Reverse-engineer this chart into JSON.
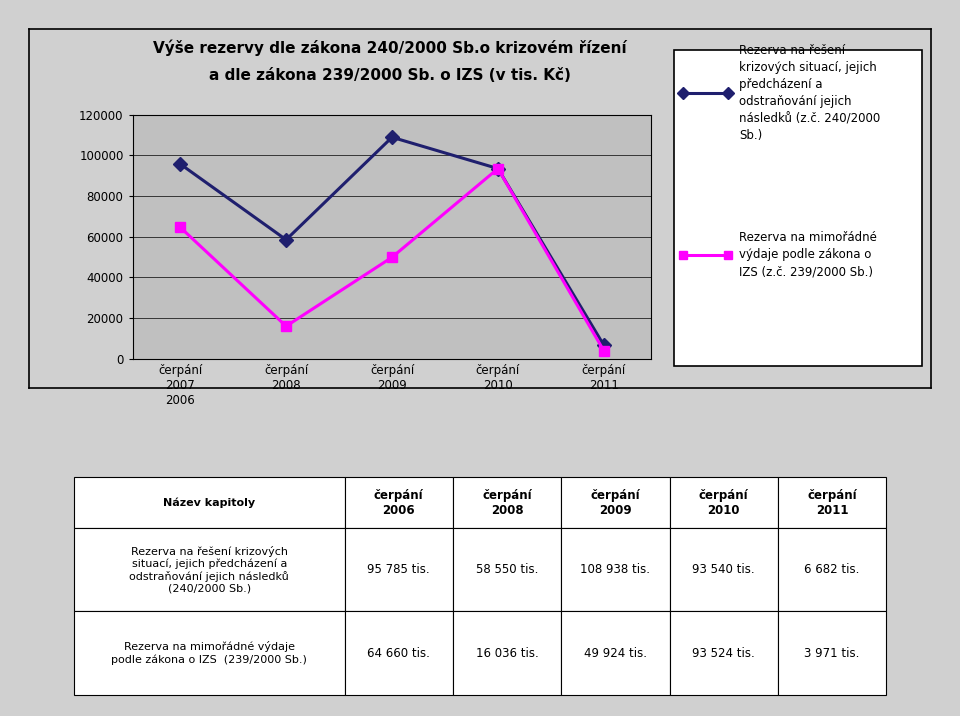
{
  "title_line1": "Výše rezervy dle zákona 240/2000 Sb.o krizovém řízení",
  "title_line2": "a dle zákona 239/2000 Sb. o IZS (v tis. Kč)",
  "series1_values": [
    95785,
    58550,
    108938,
    93540,
    6682
  ],
  "series2_values": [
    64660,
    16036,
    49924,
    93524,
    3971
  ],
  "series1_color": "#1F1F6E",
  "series2_color": "#FF00FF",
  "ylim": [
    0,
    120000
  ],
  "yticks": [
    0,
    20000,
    40000,
    60000,
    80000,
    100000,
    120000
  ],
  "legend1_text": "Rezerva na řešení\nkrizových situací, jejich\npředcházení a\nodstraňování jejich\nnásledků (z.č. 240/2000\nSb.)",
  "legend2_text": "Rezerva na mimořádné\nvýdaje podle zákona o\nIZS (z.č. 239/2000 Sb.)",
  "x_tick_labels": [
    "čerpání\n2007\n2006",
    "čerpání\n2008",
    "čerpání\n2009",
    "čerpání\n2010",
    "čerpání\n2011"
  ],
  "table_col_headers": [
    "Název kapitoly",
    "čerpání\n2006",
    "čerpání\n2008",
    "čerpání\n2009",
    "čerpání\n2010",
    "čerpání\n2011"
  ],
  "table_row1_name": "Rezerva na řešení krizových\nsituací, jejich předcházení a\nodstraňování jejich následků\n(240/2000 Sb.)",
  "table_row2_name": "Rezerva na mimořádné výdaje\npodle zákona o IZS  (239/2000 Sb.)",
  "table_row1_values": [
    "95 785 tis.",
    "58 550 tis.",
    "108 938 tis.",
    "93 540 tis.",
    "6 682 tis."
  ],
  "table_row2_values": [
    "64 660 tis.",
    "16 036 tis.",
    "49 924 tis.",
    "93 524 tis.",
    "3 971 tis."
  ],
  "outer_bg": "#D0D0D0",
  "chart_panel_bg": "#D0D0D0",
  "plot_area_bg": "#C0C0C0"
}
